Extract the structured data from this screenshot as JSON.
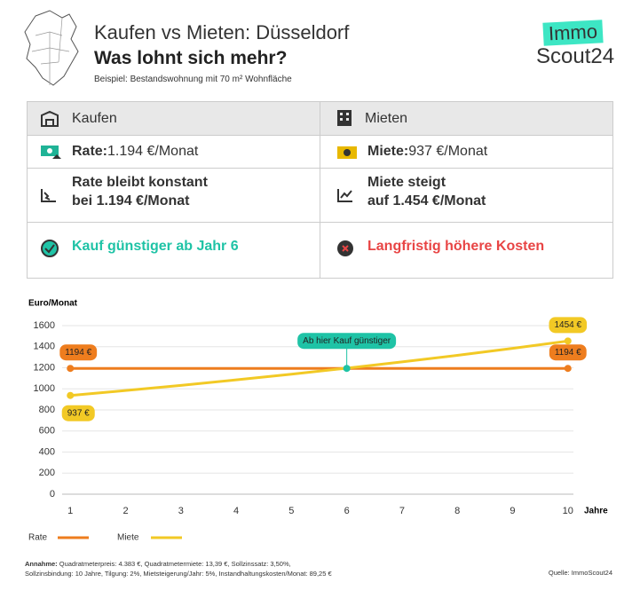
{
  "header": {
    "title": "Kaufen vs Mieten: Düsseldorf",
    "subtitle": "Was lohnt sich mehr?",
    "note": "Beispiel: Bestandswohnung mit 70 m² Wohnfläche",
    "logo_top": "Immo",
    "logo_bottom": "Scout24"
  },
  "table": {
    "headers": [
      "Kaufen",
      "Mieten"
    ],
    "rows": [
      [
        {
          "bold": "Rate:",
          "text": " 1.194 €/Monat"
        },
        {
          "bold": "Miete:",
          "text": " 937 €/Monat"
        }
      ],
      [
        {
          "bold": "Rate bleibt konstant",
          "bold2": "bei 1.194 €/Monat"
        },
        {
          "bold": "Miete steigt",
          "bold2": "auf 1.454 €/Monat"
        }
      ],
      [
        {
          "bold": "Kauf günstiger ab Jahr 6"
        },
        {
          "bold": "Langfristig höhere Kosten"
        }
      ]
    ]
  },
  "chart_data": {
    "type": "line",
    "y_label": "Euro/Monat",
    "x_label": "Jahre",
    "x": [
      1,
      2,
      3,
      4,
      5,
      6,
      7,
      8,
      9,
      10
    ],
    "series": [
      {
        "name": "Rate",
        "color": "#ee7d1e",
        "values": [
          1194,
          1194,
          1194,
          1194,
          1194,
          1194,
          1194,
          1194,
          1194,
          1194
        ],
        "value_labels": [
          "1194 €",
          null,
          null,
          null,
          null,
          null,
          null,
          null,
          null,
          "1194 €"
        ]
      },
      {
        "name": "Miete",
        "color": "#f2c925",
        "values": [
          937,
          984,
          1033,
          1085,
          1139,
          1196,
          1256,
          1318,
          1384,
          1454
        ],
        "value_labels": [
          "937 €",
          null,
          null,
          null,
          null,
          null,
          null,
          null,
          null,
          "1454 €"
        ]
      }
    ],
    "annotation": {
      "text": "Ab hier Kauf günstiger",
      "x": 6,
      "y": 1194,
      "color": "#1fc3a6"
    },
    "xlim": [
      0.9,
      10.1
    ],
    "xticks": [
      1,
      2,
      3,
      4,
      5,
      6,
      7,
      8,
      9,
      10
    ],
    "ylim": [
      0,
      1600
    ],
    "yticks": [
      0,
      200,
      400,
      600,
      800,
      1000,
      1200,
      1400,
      1600
    ],
    "grid": true
  },
  "footer": {
    "assumption_label": "Annahme:",
    "assumption_line1": " Quadratmeterpreis: 4.383 €, Quadratmetermiete: 13,39 €,  Sollzinssatz: 3,50%,",
    "assumption_line2": "Sollzinsbindung: 10 Jahre, Tilgung: 2%, Mietsteigerung/Jahr: 5%, Instandhaltungskosten/Monat: 89,25 €",
    "source": "Quelle: ImmoScout24"
  }
}
